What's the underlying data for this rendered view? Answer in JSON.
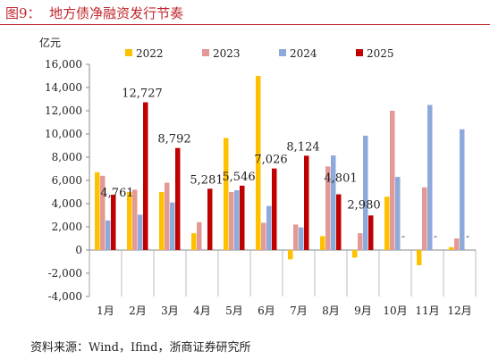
{
  "figure": {
    "title": "图9：  地方债净融资发行节奏",
    "source": "资料来源：Wind，Ifind，浙商证券研究所"
  },
  "chart_data": {
    "type": "bar",
    "unit_label": "亿元",
    "categories": [
      "1月",
      "2月",
      "3月",
      "4月",
      "5月",
      "6月",
      "7月",
      "8月",
      "9月",
      "10月",
      "11月",
      "12月"
    ],
    "series": [
      {
        "name": "2022",
        "color": "#ffc000",
        "values": [
          6700,
          5000,
          5000,
          1450,
          9650,
          15000,
          -800,
          1200,
          -650,
          4600,
          -1300,
          250
        ]
      },
      {
        "name": "2023",
        "color": "#e39a96",
        "values": [
          6400,
          5200,
          5800,
          2400,
          5000,
          2350,
          2200,
          7200,
          1450,
          12000,
          5400,
          1000
        ]
      },
      {
        "name": "2024",
        "color": "#8eaadb",
        "values": [
          2550,
          3050,
          4100,
          0,
          5150,
          3800,
          1950,
          8150,
          9850,
          6300,
          12500,
          10400
        ]
      },
      {
        "name": "2025",
        "color": "#c00000",
        "values": [
          4761,
          12727,
          8792,
          5281,
          5546,
          7026,
          8124,
          4801,
          2980,
          null,
          null,
          null
        ]
      }
    ],
    "data_labels_2025": [
      "4,761",
      "12,727",
      "8,792",
      "5,281",
      "5,546",
      "7,026",
      "8,124",
      "4,801",
      "2,980",
      "-",
      "-",
      "-"
    ],
    "yaxis": {
      "ylim": [
        -4000,
        16000
      ],
      "ticks": [
        16000,
        14000,
        12000,
        10000,
        8000,
        6000,
        4000,
        2000,
        0,
        -2000,
        -4000
      ],
      "tick_labels": [
        "16,000",
        "14,000",
        "12,000",
        "10,000",
        "8,000",
        "6,000",
        "4,000",
        "2,000",
        "0",
        "-2,000",
        "-4,000"
      ]
    },
    "legend_position": "top",
    "grid": false
  }
}
